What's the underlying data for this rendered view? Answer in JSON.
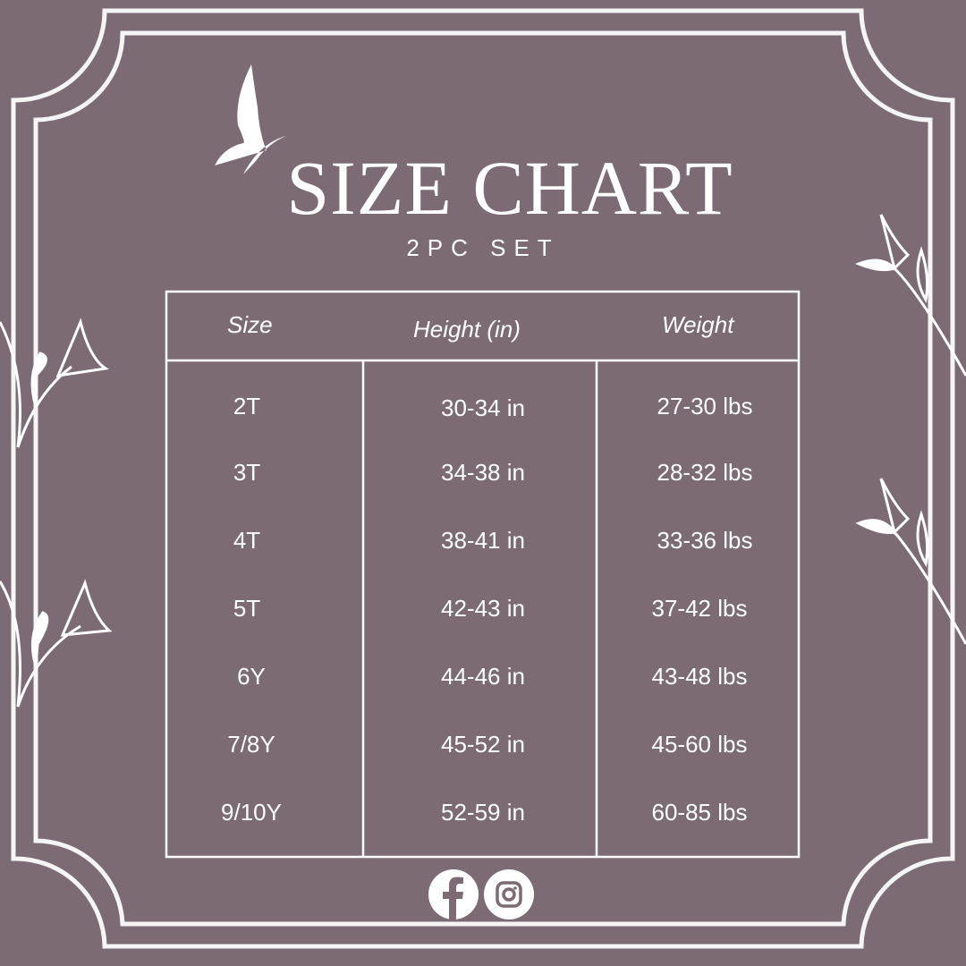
{
  "title": "SIZE CHART",
  "subtitle": "2PC SET",
  "colors": {
    "background": "#7c6b75",
    "foreground": "#ffffff"
  },
  "table": {
    "headers": [
      "Size",
      "Height (in)",
      "Weight"
    ],
    "rows": [
      [
        "2T",
        "30-34 in",
        "27-30 lbs"
      ],
      [
        "3T",
        "34-38 in",
        "28-32 lbs"
      ],
      [
        "4T",
        "38-41 in",
        "33-36 lbs"
      ],
      [
        "5T",
        "42-43 in",
        "37-42 lbs"
      ],
      [
        "6Y",
        "44-46 in",
        "43-48 lbs"
      ],
      [
        "7/8Y",
        "45-52 in",
        "45-60 lbs"
      ],
      [
        "9/10Y",
        "52-59 in",
        "60-85 lbs"
      ]
    ]
  },
  "social": [
    "facebook-icon",
    "instagram-icon"
  ]
}
